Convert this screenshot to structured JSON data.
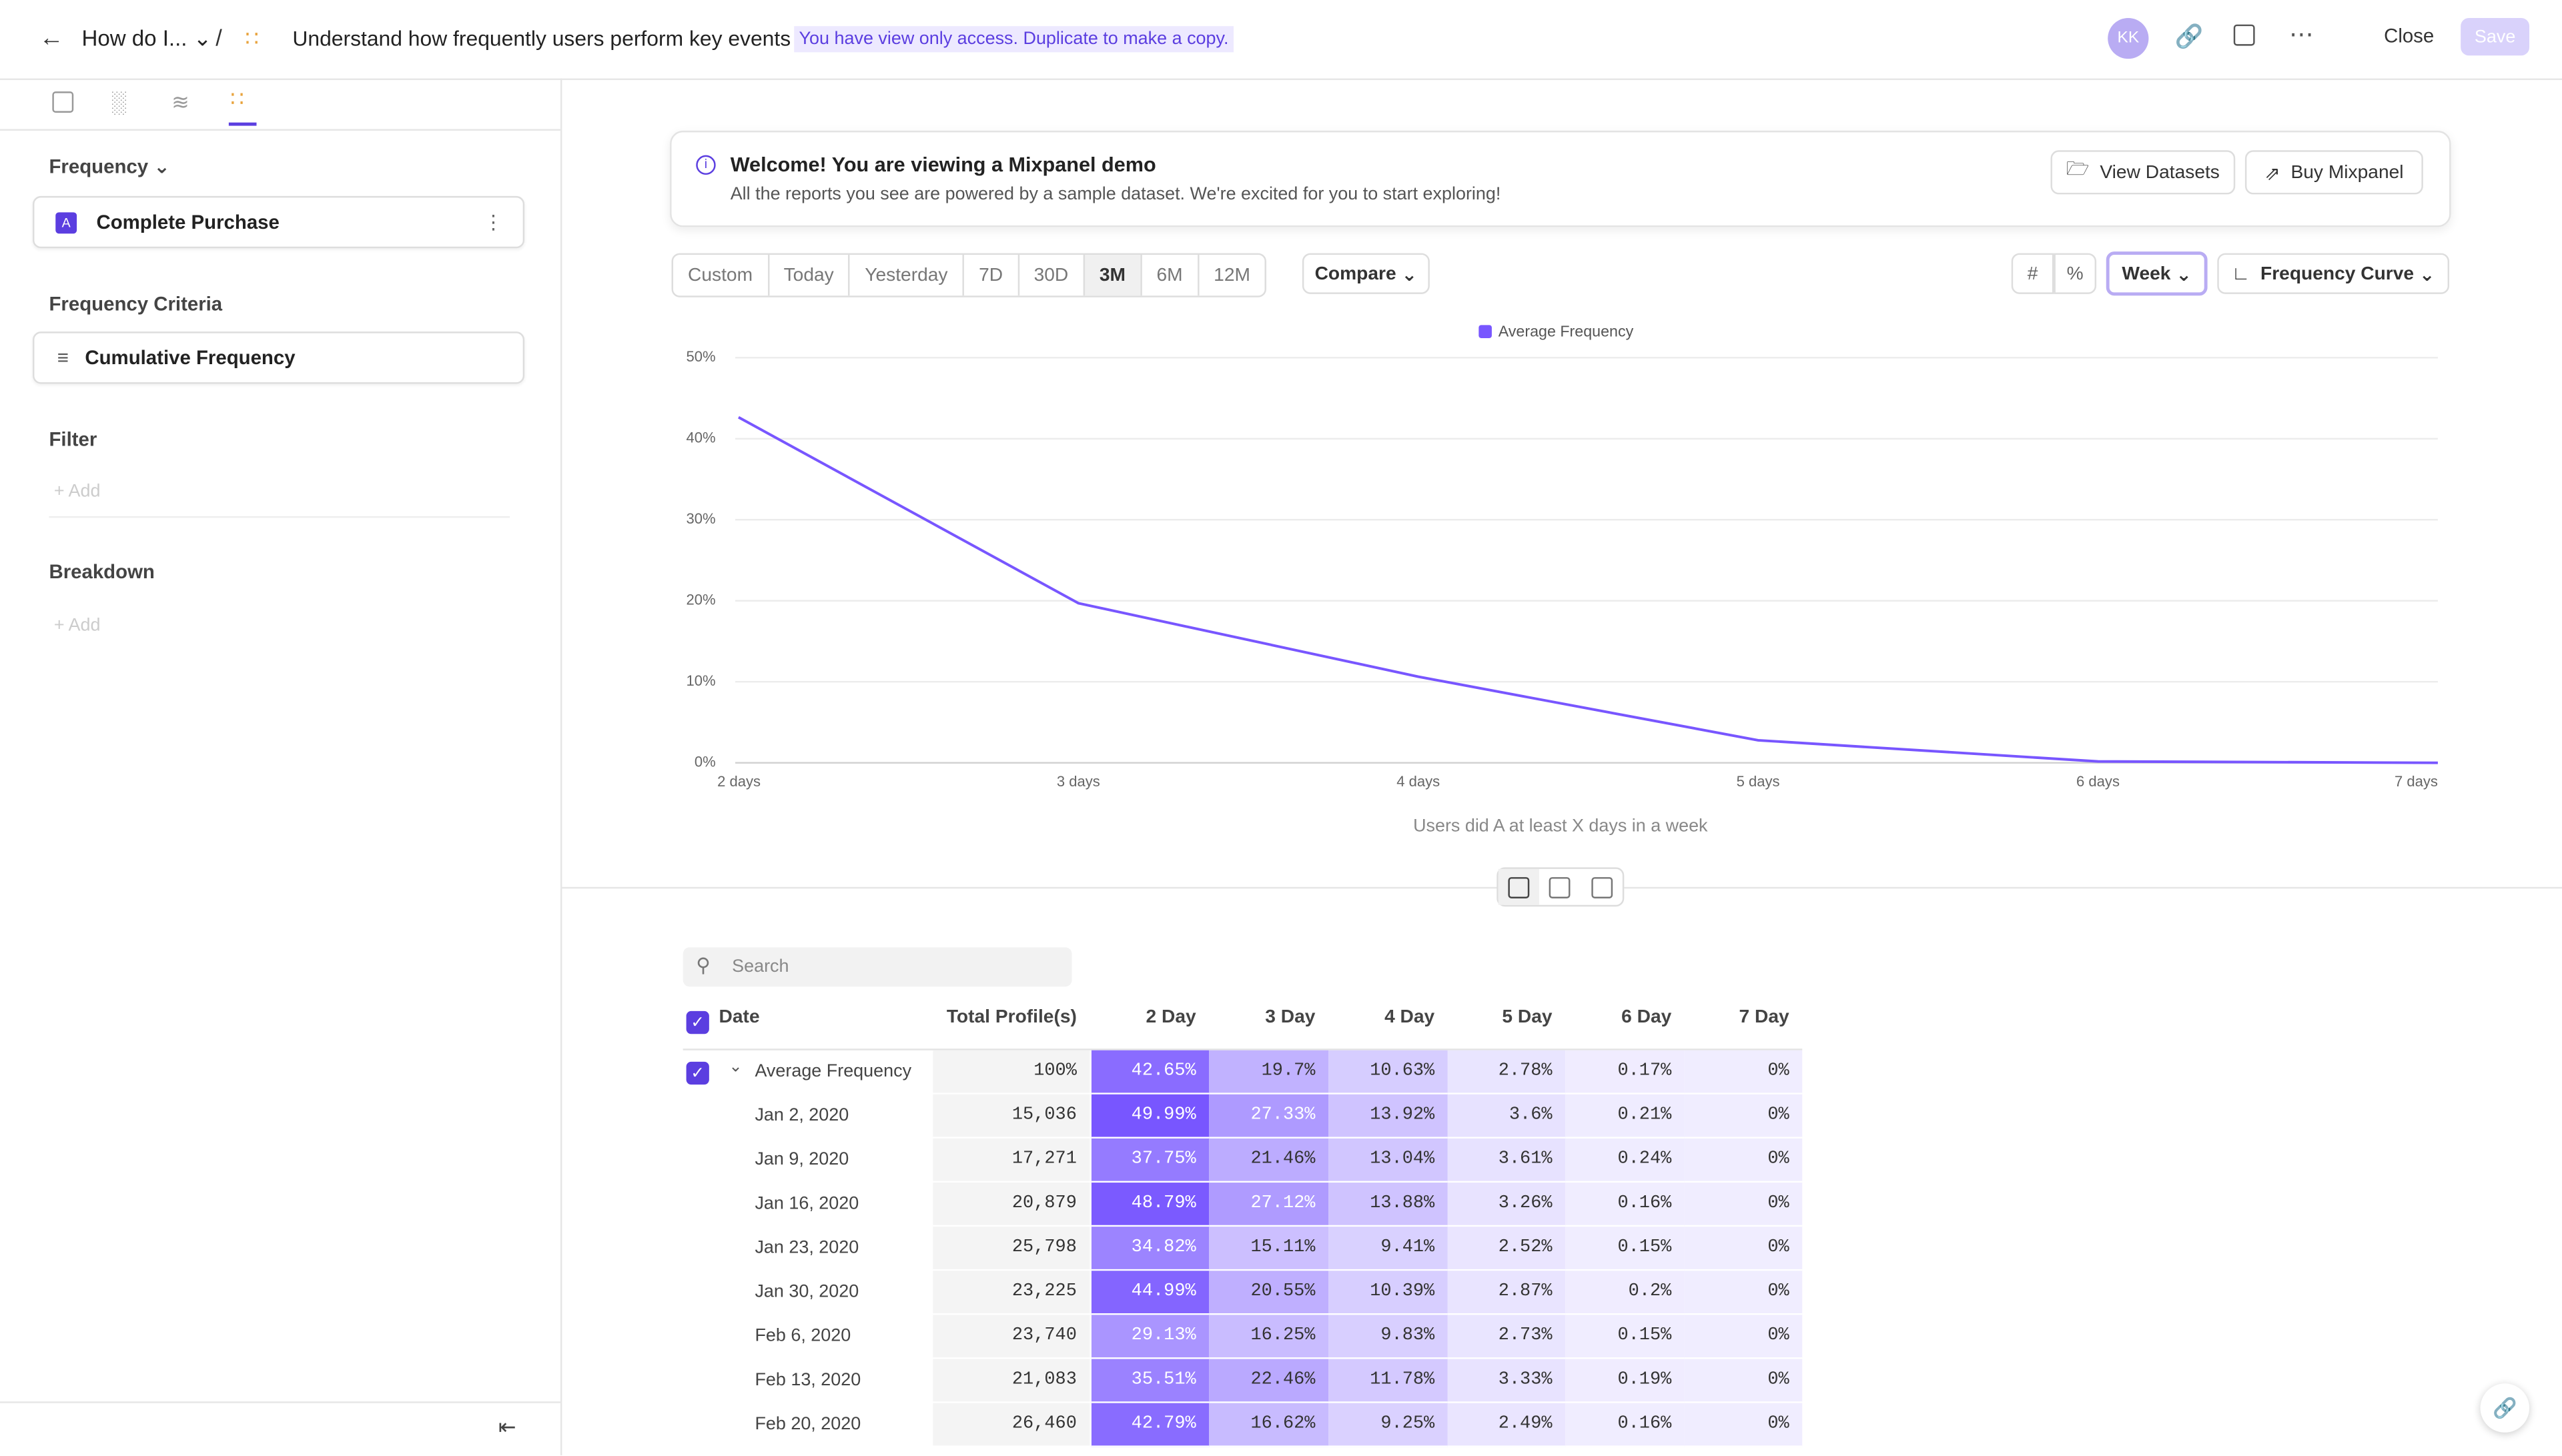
{
  "header": {
    "breadcrumb": "How do I...",
    "title": "Understand how frequently users perform key events",
    "notice": "You have view only access. Duplicate to make a copy.",
    "avatar": "KK",
    "close": "Close",
    "save": "Save"
  },
  "sidebar": {
    "section": "Frequency",
    "event_letter": "A",
    "event": "Complete Purchase",
    "criteria_label": "Frequency Criteria",
    "criteria": "Cumulative Frequency",
    "filter": "Filter",
    "filter_add": "Add",
    "breakdown": "Breakdown",
    "breakdown_add": "Add"
  },
  "banner": {
    "title": "Welcome! You are viewing a Mixpanel demo",
    "text": "All the reports you see are powered by a sample dataset. We're excited for you to start exploring!",
    "buttons": [
      "View Datasets",
      "Buy Mixpanel"
    ]
  },
  "toolbar": {
    "ranges": [
      "Custom",
      "Today",
      "Yesterday",
      "7D",
      "30D",
      "3M",
      "6M",
      "12M"
    ],
    "active_range": "3M",
    "compare": "Compare",
    "interval": "Week",
    "chart_type": "Frequency Curve"
  },
  "chart_data": {
    "type": "line",
    "categories": [
      "2 days",
      "3 days",
      "4 days",
      "5 days",
      "6 days",
      "7 days"
    ],
    "series": [
      {
        "name": "Average Frequency",
        "color": "#7856ff",
        "values": [
          42.65,
          19.7,
          10.63,
          2.78,
          0.17,
          0
        ]
      }
    ],
    "ylim": [
      0,
      50
    ],
    "yticks": [
      {
        "value": 0,
        "label": "0%"
      },
      {
        "value": 10,
        "label": "10%"
      },
      {
        "value": 20,
        "label": "20%"
      },
      {
        "value": 30,
        "label": "30%"
      },
      {
        "value": 40,
        "label": "40%"
      },
      {
        "value": 50,
        "label": "50%"
      }
    ],
    "x_label": "Users did A at least X days in a week",
    "grid": true,
    "legend": "top"
  },
  "table": {
    "search": "Search",
    "columns": [
      "Date",
      "Total Profile(s)",
      "2 Day",
      "3 Day",
      "4 Day",
      "5 Day",
      "6 Day",
      "7 Day"
    ],
    "rows": [
      [
        "Average Frequency",
        "100%",
        "42.65%",
        "19.7%",
        "10.63%",
        "2.78%",
        "0.17%",
        "0%"
      ],
      [
        "Jan 2, 2020",
        "15,036",
        "49.99%",
        "27.33%",
        "13.92%",
        "3.6%",
        "0.21%",
        "0%"
      ],
      [
        "Jan 9, 2020",
        "17,271",
        "37.75%",
        "21.46%",
        "13.04%",
        "3.61%",
        "0.24%",
        "0%"
      ],
      [
        "Jan 16, 2020",
        "20,879",
        "48.79%",
        "27.12%",
        "13.88%",
        "3.26%",
        "0.16%",
        "0%"
      ],
      [
        "Jan 23, 2020",
        "25,798",
        "34.82%",
        "15.11%",
        "9.41%",
        "2.52%",
        "0.15%",
        "0%"
      ],
      [
        "Jan 30, 2020",
        "23,225",
        "44.99%",
        "20.55%",
        "10.39%",
        "2.87%",
        "0.2%",
        "0%"
      ],
      [
        "Feb 6, 2020",
        "23,740",
        "29.13%",
        "16.25%",
        "9.83%",
        "2.73%",
        "0.15%",
        "0%"
      ],
      [
        "Feb 13, 2020",
        "21,083",
        "35.51%",
        "22.46%",
        "11.78%",
        "3.33%",
        "0.19%",
        "0%"
      ],
      [
        "Feb 20, 2020",
        "26,460",
        "42.79%",
        "16.62%",
        "9.25%",
        "2.49%",
        "0.16%",
        "0%"
      ]
    ]
  }
}
